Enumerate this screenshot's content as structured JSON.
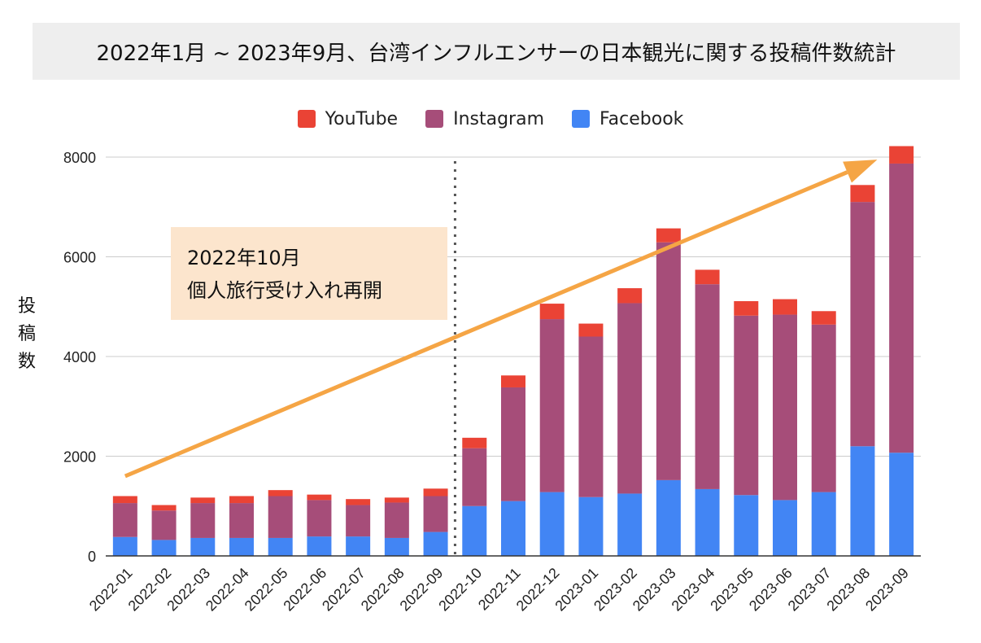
{
  "chart_data": {
    "type": "bar",
    "stacked": true,
    "title": "2022年1月 ~ 2023年9月、台湾インフルエンサーの日本観光に関する投稿件数統計",
    "ylabel": "投稿数",
    "xlabel": "",
    "ylim": [
      0,
      8000
    ],
    "yticks": [
      0,
      2000,
      4000,
      6000,
      8000
    ],
    "grid": true,
    "legend_position": "top-center",
    "categories": [
      "2022-01",
      "2022-02",
      "2022-03",
      "2022-04",
      "2022-05",
      "2022-06",
      "2022-07",
      "2022-08",
      "2022-09",
      "2022-10",
      "2022-11",
      "2022-12",
      "2023-01",
      "2023-02",
      "2023-03",
      "2023-04",
      "2023-05",
      "2023-06",
      "2023-07",
      "2023-08",
      "2023-09"
    ],
    "series": [
      {
        "name": "Facebook",
        "color": "#4285f4",
        "values": [
          380,
          320,
          360,
          360,
          360,
          390,
          390,
          360,
          480,
          1000,
          1100,
          1280,
          1180,
          1250,
          1520,
          1340,
          1220,
          1120,
          1280,
          2200,
          2070
        ]
      },
      {
        "name": "Instagram",
        "color": "#a64d79",
        "values": [
          680,
          590,
          700,
          700,
          840,
          730,
          630,
          710,
          720,
          1160,
          2280,
          3470,
          3220,
          3820,
          4770,
          4110,
          3600,
          3720,
          3360,
          4900,
          5800
        ]
      },
      {
        "name": "YouTube",
        "color": "#ea4335",
        "values": [
          140,
          110,
          110,
          140,
          120,
          110,
          120,
          100,
          150,
          210,
          240,
          310,
          260,
          300,
          280,
          290,
          290,
          310,
          270,
          340,
          350
        ]
      }
    ],
    "annotation": {
      "line1": "2022年10月",
      "line2": "個人旅行受け入れ再開",
      "marker_after_category": "2022-09"
    },
    "trend_arrow": {
      "from": [
        "2022-01",
        1600
      ],
      "to": [
        "2023-08",
        7950
      ],
      "color": "#f5a545"
    }
  },
  "legend_order": [
    "YouTube",
    "Instagram",
    "Facebook"
  ]
}
